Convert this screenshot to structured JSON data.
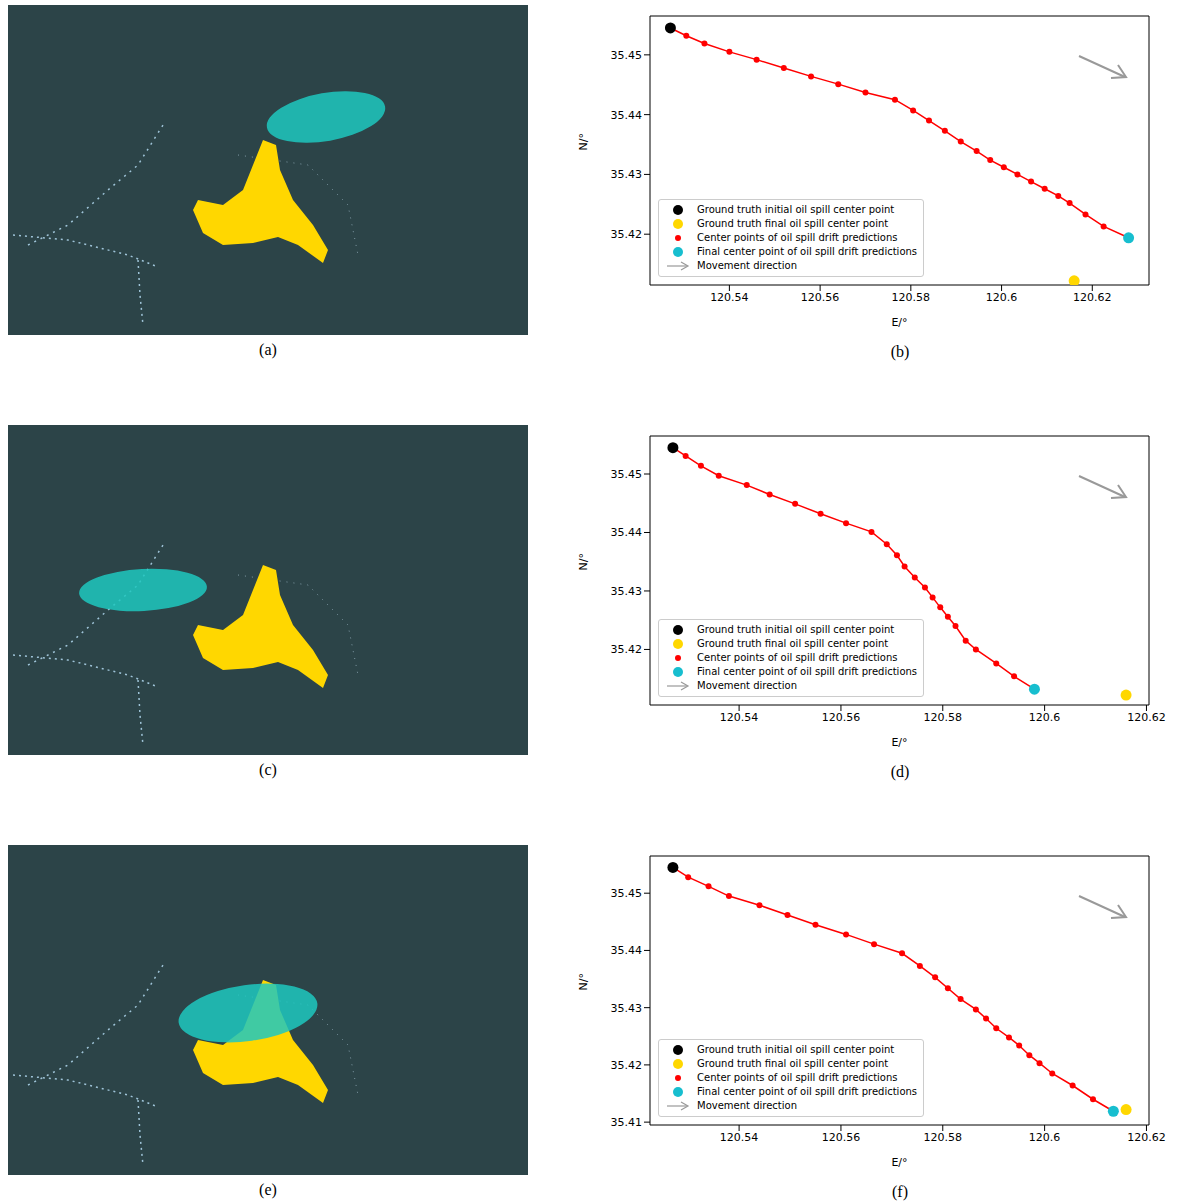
{
  "chart_data": [
    {
      "type": "image",
      "caption": "(a)"
    },
    {
      "type": "line",
      "caption": "(b)",
      "xlabel": "E/°",
      "ylabel": "N/°",
      "xlim": [
        120.5225,
        120.6325
      ],
      "ylim": [
        35.4115,
        35.4565
      ],
      "xticks": [
        120.54,
        120.56,
        120.58,
        120.6,
        120.62
      ],
      "yticks": [
        35.42,
        35.43,
        35.44,
        35.45
      ],
      "legend": "lower left",
      "series": [
        {
          "name": "Ground truth initial oil spill center point",
          "type": "scatter",
          "color": "#000000",
          "marker": "circle",
          "x": [
            120.527
          ],
          "values": [
            35.4545
          ]
        },
        {
          "name": "Ground truth final oil spill center point",
          "type": "scatter",
          "color": "#ffd700",
          "marker": "circle",
          "x": [
            120.616
          ],
          "values": [
            35.4122
          ]
        },
        {
          "name": "Center points of oil spill drift predictions",
          "type": "line",
          "color": "#ff0000",
          "marker": "circle",
          "line_style": "solid",
          "x": [
            120.527,
            120.5305,
            120.5345,
            120.54,
            120.546,
            120.552,
            120.558,
            120.564,
            120.57,
            120.5765,
            120.5805,
            120.584,
            120.5875,
            120.591,
            120.5945,
            120.5975,
            120.6005,
            120.6035,
            120.6065,
            120.6095,
            120.6125,
            120.615,
            120.6185,
            120.6225,
            120.628
          ],
          "values": [
            35.4545,
            35.4532,
            35.4519,
            35.4505,
            35.4492,
            35.4478,
            35.4464,
            35.4451,
            35.4437,
            35.4425,
            35.4407,
            35.439,
            35.4373,
            35.4355,
            35.4339,
            35.4324,
            35.4312,
            35.43,
            35.4288,
            35.4276,
            35.4264,
            35.4252,
            35.4233,
            35.4213,
            35.4194
          ]
        },
        {
          "name": "Final center point of oil spill drift predictions",
          "type": "scatter",
          "color": "#17becf",
          "marker": "circle",
          "x": [
            120.628
          ],
          "values": [
            35.4194
          ]
        },
        {
          "name": "Movement direction",
          "type": "arrow",
          "color": "#999999"
        }
      ]
    },
    {
      "type": "image",
      "caption": "(c)"
    },
    {
      "type": "line",
      "caption": "(d)",
      "xlabel": "E/°",
      "ylabel": "N/°",
      "xlim": [
        120.5225,
        120.6205
      ],
      "ylim": [
        35.4105,
        35.4565
      ],
      "xticks": [
        120.54,
        120.56,
        120.58,
        120.6,
        120.62
      ],
      "yticks": [
        35.42,
        35.43,
        35.44,
        35.45
      ],
      "legend": "lower left",
      "series": [
        {
          "name": "Ground truth initial oil spill center point",
          "type": "scatter",
          "color": "#000000",
          "marker": "circle",
          "x": [
            120.527
          ],
          "values": [
            35.4545
          ]
        },
        {
          "name": "Ground truth final oil spill center point",
          "type": "scatter",
          "color": "#ffd700",
          "marker": "circle",
          "x": [
            120.616
          ],
          "values": [
            35.4122
          ]
        },
        {
          "name": "Center points of oil spill drift predictions",
          "type": "line",
          "color": "#ff0000",
          "marker": "circle",
          "line_style": "solid",
          "x": [
            120.527,
            120.5295,
            120.5325,
            120.536,
            120.5415,
            120.546,
            120.551,
            120.556,
            120.561,
            120.566,
            120.569,
            120.571,
            120.5725,
            120.5745,
            120.5765,
            120.578,
            120.5795,
            120.581,
            120.5825,
            120.5845,
            120.5865,
            120.5905,
            120.594,
            120.598
          ],
          "values": [
            35.4545,
            35.4531,
            35.4514,
            35.4497,
            35.4481,
            35.4465,
            35.4449,
            35.4432,
            35.4416,
            35.4401,
            35.438,
            35.4361,
            35.4342,
            35.4323,
            35.4306,
            35.4289,
            35.4272,
            35.4256,
            35.424,
            35.4215,
            35.42,
            35.4176,
            35.4154,
            35.4132
          ]
        },
        {
          "name": "Final center point of oil spill drift predictions",
          "type": "scatter",
          "color": "#17becf",
          "marker": "circle",
          "x": [
            120.598
          ],
          "values": [
            35.4132
          ]
        },
        {
          "name": "Movement direction",
          "type": "arrow",
          "color": "#999999"
        }
      ]
    },
    {
      "type": "image",
      "caption": "(e)"
    },
    {
      "type": "line",
      "caption": "(f)",
      "xlabel": "E/°",
      "ylabel": "N/°",
      "xlim": [
        120.5225,
        120.6205
      ],
      "ylim": [
        35.4095,
        35.4565
      ],
      "xticks": [
        120.54,
        120.56,
        120.58,
        120.6,
        120.62
      ],
      "yticks": [
        35.41,
        35.42,
        35.43,
        35.44,
        35.45
      ],
      "legend": "lower left",
      "series": [
        {
          "name": "Ground truth initial oil spill center point",
          "type": "scatter",
          "color": "#000000",
          "marker": "circle",
          "x": [
            120.527
          ],
          "values": [
            35.4545
          ]
        },
        {
          "name": "Ground truth final oil spill center point",
          "type": "scatter",
          "color": "#ffd700",
          "marker": "circle",
          "x": [
            120.616
          ],
          "values": [
            35.4122
          ]
        },
        {
          "name": "Center points of oil spill drift predictions",
          "type": "line",
          "color": "#ff0000",
          "marker": "circle",
          "line_style": "solid",
          "x": [
            120.527,
            120.53,
            120.534,
            120.538,
            120.544,
            120.5495,
            120.555,
            120.561,
            120.5665,
            120.572,
            120.5755,
            120.5785,
            120.581,
            120.5835,
            120.5865,
            120.5885,
            120.5905,
            120.593,
            120.595,
            120.597,
            120.599,
            120.6015,
            120.6055,
            120.6095,
            120.6135
          ],
          "values": [
            35.4545,
            35.4528,
            35.4512,
            35.4495,
            35.4479,
            35.4462,
            35.4445,
            35.4428,
            35.4411,
            35.4395,
            35.4373,
            35.4353,
            35.4334,
            35.4315,
            35.4297,
            35.4281,
            35.4264,
            35.4248,
            35.4234,
            35.4217,
            35.4203,
            35.4185,
            35.4164,
            35.414,
            35.4119
          ]
        },
        {
          "name": "Final center point of oil spill drift predictions",
          "type": "scatter",
          "color": "#17becf",
          "marker": "circle",
          "x": [
            120.6135
          ],
          "values": [
            35.4119
          ]
        },
        {
          "name": "Movement direction",
          "type": "arrow",
          "color": "#999999"
        }
      ]
    }
  ]
}
